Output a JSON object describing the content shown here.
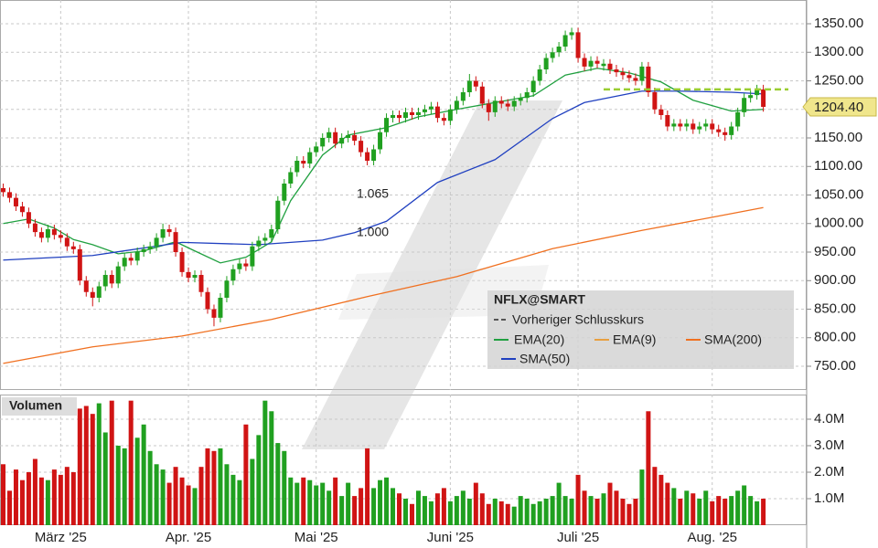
{
  "chart_data": {
    "type": "candlestick",
    "title": "NFLX@SMART",
    "xlim": [
      -0.5,
      125.5
    ],
    "xticks": [
      {
        "value": 9,
        "label": "März '25"
      },
      {
        "value": 29,
        "label": "Apr. '25"
      },
      {
        "value": 49,
        "label": "Mai '25"
      },
      {
        "value": 70,
        "label": "Juni '25"
      },
      {
        "value": 90,
        "label": "Juli '25"
      },
      {
        "value": 111,
        "label": "Aug. '25"
      }
    ],
    "ylim": [
      708.4,
      1391.6
    ],
    "yticks": [
      {
        "value": 750,
        "label": "750.00"
      },
      {
        "value": 800,
        "label": "800.00"
      },
      {
        "value": 850,
        "label": "850.00"
      },
      {
        "value": 900,
        "label": "900.00"
      },
      {
        "value": 950,
        "label": "950.00"
      },
      {
        "value": 1000,
        "label": "1000.00"
      },
      {
        "value": 1050,
        "label": "1050.00"
      },
      {
        "value": 1100,
        "label": "1100.00"
      },
      {
        "value": 1150,
        "label": "1150.00"
      },
      {
        "value": 1200,
        "label": "1200.00"
      },
      {
        "value": 1250,
        "label": "1250.00"
      },
      {
        "value": 1300,
        "label": "1300.00"
      },
      {
        "value": 1350,
        "label": "1350.00"
      }
    ],
    "grid": true,
    "up_color": "#20a020",
    "down_color": "#d01414",
    "open": [
      1062,
      1055,
      1045,
      1030,
      1020,
      1000,
      985,
      975,
      990,
      980,
      975,
      960,
      955,
      900,
      880,
      870,
      890,
      910,
      895,
      925,
      940,
      935,
      950,
      955,
      960,
      975,
      990,
      985,
      950,
      915,
      905,
      910,
      880,
      850,
      835,
      870,
      900,
      920,
      930,
      925,
      960,
      970,
      975,
      990,
      1040,
      1070,
      1090,
      1110,
      1105,
      1125,
      1135,
      1150,
      1160,
      1140,
      1150,
      1155,
      1145,
      1125,
      1110,
      1130,
      1160,
      1185,
      1190,
      1185,
      1195,
      1190,
      1195,
      1200,
      1205,
      1185,
      1180,
      1200,
      1215,
      1230,
      1250,
      1240,
      1210,
      1195,
      1215,
      1210,
      1205,
      1215,
      1220,
      1230,
      1250,
      1270,
      1290,
      1300,
      1310,
      1330,
      1335,
      1290,
      1275,
      1285,
      1276,
      1280,
      1270,
      1265,
      1260,
      1255,
      1250,
      1275,
      1230,
      1200,
      1190,
      1170,
      1175,
      1170,
      1175,
      1165,
      1170,
      1175,
      1165,
      1160,
      1155,
      1170,
      1195,
      1220,
      1225,
      1235
    ],
    "high": [
      1070,
      1063,
      1053,
      1038,
      1028,
      1008,
      993,
      998,
      998,
      988,
      983,
      968,
      963,
      908,
      888,
      898,
      918,
      918,
      933,
      948,
      948,
      958,
      963,
      968,
      983,
      1000,
      998,
      993,
      958,
      923,
      918,
      918,
      888,
      858,
      878,
      908,
      928,
      938,
      938,
      968,
      978,
      983,
      998,
      1048,
      1078,
      1098,
      1118,
      1118,
      1133,
      1143,
      1158,
      1168,
      1168,
      1158,
      1163,
      1163,
      1153,
      1133,
      1138,
      1168,
      1193,
      1198,
      1198,
      1203,
      1203,
      1203,
      1208,
      1213,
      1213,
      1193,
      1208,
      1223,
      1238,
      1262,
      1258,
      1248,
      1218,
      1223,
      1223,
      1218,
      1223,
      1228,
      1238,
      1258,
      1278,
      1298,
      1308,
      1318,
      1338,
      1343,
      1343,
      1298,
      1293,
      1293,
      1288,
      1288,
      1278,
      1273,
      1268,
      1263,
      1283,
      1283,
      1238,
      1208,
      1198,
      1183,
      1183,
      1183,
      1183,
      1178,
      1183,
      1183,
      1173,
      1168,
      1178,
      1203,
      1228,
      1233,
      1243,
      1243
    ],
    "low": [
      1047,
      1037,
      1022,
      1012,
      992,
      977,
      967,
      967,
      972,
      967,
      952,
      947,
      892,
      872,
      855,
      862,
      882,
      887,
      887,
      917,
      927,
      927,
      942,
      947,
      952,
      967,
      977,
      942,
      907,
      897,
      897,
      872,
      842,
      820,
      827,
      862,
      892,
      912,
      917,
      917,
      952,
      962,
      967,
      982,
      1032,
      1062,
      1082,
      1097,
      1097,
      1117,
      1127,
      1142,
      1132,
      1132,
      1142,
      1137,
      1117,
      1102,
      1102,
      1122,
      1152,
      1177,
      1177,
      1177,
      1182,
      1182,
      1187,
      1192,
      1177,
      1172,
      1172,
      1192,
      1207,
      1222,
      1232,
      1202,
      1180,
      1187,
      1202,
      1197,
      1197,
      1207,
      1212,
      1222,
      1242,
      1262,
      1282,
      1292,
      1302,
      1322,
      1282,
      1267,
      1267,
      1272,
      1268,
      1262,
      1257,
      1252,
      1247,
      1242,
      1242,
      1222,
      1192,
      1182,
      1162,
      1162,
      1162,
      1162,
      1157,
      1157,
      1162,
      1157,
      1152,
      1145,
      1147,
      1162,
      1187,
      1212,
      1217,
      1196
    ],
    "close": [
      1055,
      1045,
      1030,
      1020,
      1000,
      985,
      975,
      990,
      980,
      975,
      960,
      955,
      900,
      880,
      870,
      890,
      910,
      895,
      925,
      940,
      935,
      950,
      955,
      960,
      975,
      990,
      985,
      950,
      915,
      905,
      910,
      880,
      850,
      835,
      870,
      900,
      920,
      930,
      925,
      960,
      970,
      975,
      990,
      1040,
      1070,
      1090,
      1110,
      1105,
      1125,
      1135,
      1150,
      1160,
      1140,
      1150,
      1155,
      1145,
      1125,
      1110,
      1130,
      1160,
      1185,
      1190,
      1185,
      1195,
      1190,
      1195,
      1200,
      1205,
      1185,
      1180,
      1200,
      1215,
      1230,
      1250,
      1240,
      1210,
      1195,
      1215,
      1210,
      1205,
      1215,
      1220,
      1230,
      1250,
      1270,
      1290,
      1300,
      1310,
      1330,
      1335,
      1290,
      1275,
      1285,
      1280,
      1280,
      1270,
      1265,
      1260,
      1255,
      1250,
      1275,
      1230,
      1200,
      1190,
      1170,
      1175,
      1170,
      1175,
      1165,
      1170,
      1175,
      1165,
      1160,
      1155,
      1170,
      1195,
      1220,
      1225,
      1235,
      1204.4
    ],
    "last_price": {
      "value": 1204.4,
      "label": "1204.40"
    },
    "previous_close": {
      "name": "Vorheriger Schlusskurs",
      "value": 1235,
      "color": "#9acd32"
    },
    "lines": [
      {
        "name": "EMA(20)",
        "color": "#20a040",
        "x": [
          0,
          4,
          8,
          11,
          14,
          18,
          22,
          27,
          30,
          34,
          38,
          42,
          45,
          50,
          54,
          60,
          65,
          71,
          77,
          83,
          88,
          93,
          98,
          103,
          108,
          114,
          119
        ],
        "values": [
          1000,
          1008,
          992,
          972,
          963,
          947,
          952,
          968,
          952,
          931,
          941,
          968,
          1040,
          1120,
          1155,
          1168,
          1187,
          1200,
          1212,
          1224,
          1260,
          1272,
          1264,
          1248,
          1216,
          1197,
          1200
        ]
      },
      {
        "name": "EMA(9)",
        "color": "#e8a040",
        "visible": false
      },
      {
        "name": "SMA(200)",
        "color": "#f07020",
        "x": [
          0,
          14,
          28,
          42,
          57,
          71,
          86,
          100,
          111,
          119
        ],
        "values": [
          755,
          784,
          803,
          832,
          872,
          907,
          956,
          988,
          1011,
          1028
        ]
      },
      {
        "name": "SMA(50)",
        "color": "#2040c0",
        "x": [
          0,
          14,
          28,
          40,
          50,
          55,
          60,
          68,
          77,
          86,
          91,
          100,
          106,
          114,
          119
        ],
        "values": [
          936,
          944,
          967,
          963,
          971,
          984,
          1004,
          1072,
          1112,
          1184,
          1212,
          1232,
          1232,
          1230,
          1227
        ]
      }
    ],
    "annotations": [
      "1.065",
      "1.000"
    ],
    "volume": {
      "label": "Volumen",
      "ylim": [
        0,
        4.93
      ],
      "yticks": [
        {
          "value": 1,
          "label": "1.0M"
        },
        {
          "value": 2,
          "label": "2.0M"
        },
        {
          "value": 3,
          "label": "3.0M"
        },
        {
          "value": 4,
          "label": "4.0M"
        }
      ],
      "values": [
        2.3,
        1.3,
        2.1,
        1.7,
        2.0,
        2.5,
        1.8,
        1.7,
        2.1,
        1.9,
        2.2,
        2.0,
        4.4,
        4.5,
        4.2,
        4.6,
        3.5,
        4.7,
        3.0,
        2.9,
        4.7,
        3.3,
        3.8,
        2.8,
        2.3,
        2.1,
        1.6,
        2.2,
        1.8,
        1.5,
        1.4,
        2.2,
        2.9,
        2.8,
        2.9,
        2.3,
        1.9,
        1.7,
        3.8,
        2.5,
        3.4,
        4.7,
        4.3,
        3.1,
        2.8,
        1.8,
        1.6,
        1.8,
        1.7,
        1.5,
        1.6,
        1.3,
        1.8,
        1.1,
        1.6,
        1.1,
        1.4,
        2.9,
        1.4,
        1.7,
        1.8,
        1.4,
        1.2,
        1.0,
        0.8,
        1.3,
        1.1,
        0.9,
        1.2,
        1.4,
        0.9,
        1.1,
        1.3,
        1.0,
        1.6,
        1.2,
        0.8,
        1.0,
        0.9,
        0.8,
        0.7,
        1.1,
        1.0,
        0.8,
        0.9,
        1.0,
        1.1,
        1.6,
        1.1,
        1.0,
        1.9,
        1.3,
        1.1,
        1.0,
        1.2,
        1.6,
        1.3,
        1.0,
        0.8,
        1.0,
        2.1,
        4.3,
        2.2,
        1.9,
        1.6,
        1.4,
        1.0,
        1.3,
        1.2,
        1.0,
        1.3,
        0.9,
        1.1,
        1.0,
        1.1,
        1.3,
        1.5,
        1.1,
        0.9,
        1.0
      ]
    }
  }
}
